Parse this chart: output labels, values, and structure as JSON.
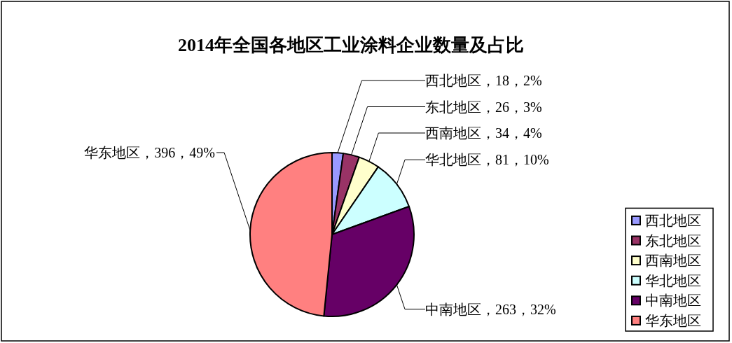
{
  "chart_data": {
    "type": "pie",
    "title": "2014年全国各地区工业涂料企业数量及占比",
    "categories": [
      "西北地区",
      "东北地区",
      "西南地区",
      "华北地区",
      "中南地区",
      "华东地区"
    ],
    "values": [
      18,
      26,
      34,
      81,
      263,
      396
    ],
    "colors": [
      "#9999ff",
      "#993366",
      "#ffffcc",
      "#ccffff",
      "#660066",
      "#ff8080"
    ],
    "value_labels": [
      "西北地区，18，2%",
      "东北地区，26，3%",
      "西南地区，34，4%",
      "华北地区，81，10%",
      "中南地区，263，32%",
      "华东地区，396，49%"
    ],
    "legend": "bottom right"
  }
}
